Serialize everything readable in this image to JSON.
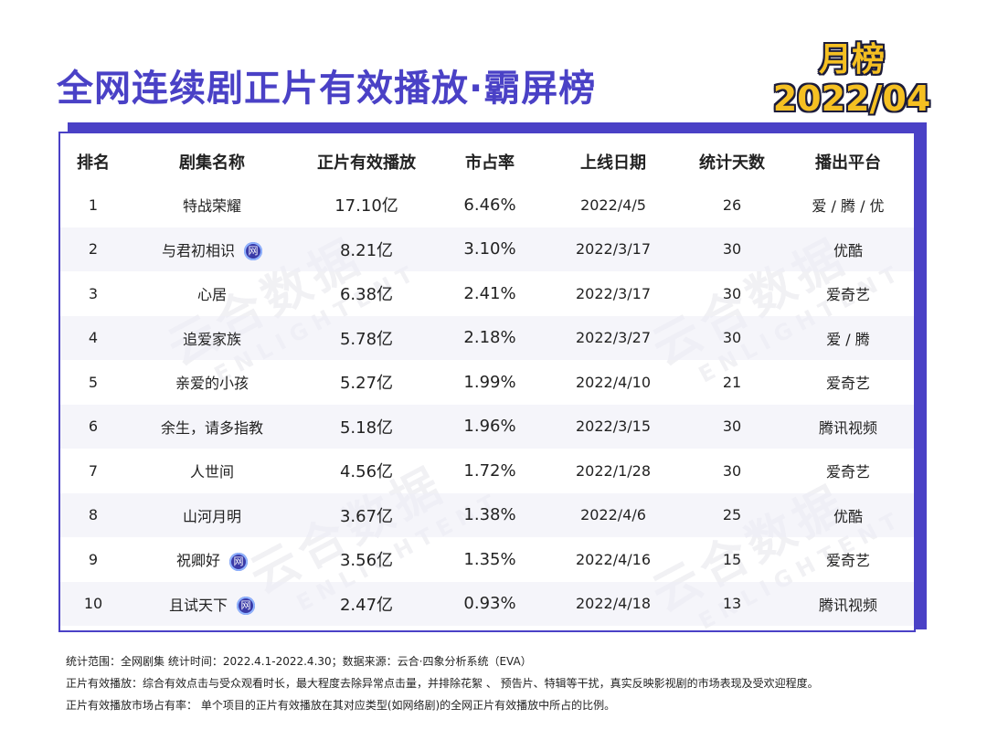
{
  "header": {
    "title": "全网连续剧正片有效播放·霸屏榜",
    "badge_line1": "月榜",
    "badge_line2": "2022/04"
  },
  "table": {
    "columns": [
      "排名",
      "剧集名称",
      "正片有效播放",
      "市占率",
      "上线日期",
      "统计天数",
      "播出平台"
    ],
    "rows": [
      {
        "rank": "1",
        "name": "特战荣耀",
        "net_icon": false,
        "plays": "17.10亿",
        "share": "6.46%",
        "date": "2022/4/5",
        "days": "26",
        "platform": "爱 / 腾 / 优"
      },
      {
        "rank": "2",
        "name": "与君初相识",
        "net_icon": true,
        "plays": "8.21亿",
        "share": "3.10%",
        "date": "2022/3/17",
        "days": "30",
        "platform": "优酷"
      },
      {
        "rank": "3",
        "name": "心居",
        "net_icon": false,
        "plays": "6.38亿",
        "share": "2.41%",
        "date": "2022/3/17",
        "days": "30",
        "platform": "爱奇艺"
      },
      {
        "rank": "4",
        "name": "追爱家族",
        "net_icon": false,
        "plays": "5.78亿",
        "share": "2.18%",
        "date": "2022/3/27",
        "days": "30",
        "platform": "爱 / 腾"
      },
      {
        "rank": "5",
        "name": "亲爱的小孩",
        "net_icon": false,
        "plays": "5.27亿",
        "share": "1.99%",
        "date": "2022/4/10",
        "days": "21",
        "platform": "爱奇艺"
      },
      {
        "rank": "6",
        "name": "余生，请多指教",
        "net_icon": false,
        "plays": "5.18亿",
        "share": "1.96%",
        "date": "2022/3/15",
        "days": "30",
        "platform": "腾讯视频"
      },
      {
        "rank": "7",
        "name": "人世间",
        "net_icon": false,
        "plays": "4.56亿",
        "share": "1.72%",
        "date": "2022/1/28",
        "days": "30",
        "platform": "爱奇艺"
      },
      {
        "rank": "8",
        "name": "山河月明",
        "net_icon": false,
        "plays": "3.67亿",
        "share": "1.38%",
        "date": "2022/4/6",
        "days": "25",
        "platform": "优酷"
      },
      {
        "rank": "9",
        "name": "祝卿好",
        "net_icon": true,
        "plays": "3.56亿",
        "share": "1.35%",
        "date": "2022/4/16",
        "days": "15",
        "platform": "爱奇艺"
      },
      {
        "rank": "10",
        "name": "且试天下",
        "net_icon": true,
        "plays": "2.47亿",
        "share": "0.93%",
        "date": "2022/4/18",
        "days": "13",
        "platform": "腾讯视频"
      }
    ],
    "net_icon_label": "网"
  },
  "watermark": {
    "cn": "云合数据",
    "en": "ENLIGHTENT"
  },
  "notes": [
    "统计范围：全网剧集    统计时间：2022.4.1-2022.4.30；数据来源：云合·四象分析系统（EVA）",
    "正片有效播放：综合有效点击与受众观看时长，最大程度去除异常点击量，并排除花絮 、 预告片、特辑等干扰，真实反映影视剧的市场表现及受欢迎程度。",
    "正片有效播放市场占有率： 单个项目的正片有效播放在其对应类型(如网络剧)的全网正片有效播放中所占的比例。"
  ],
  "colors": {
    "brand": "#4a41c6",
    "badge_fill": "#f5c022",
    "net_icon": "#3a3aa8"
  }
}
